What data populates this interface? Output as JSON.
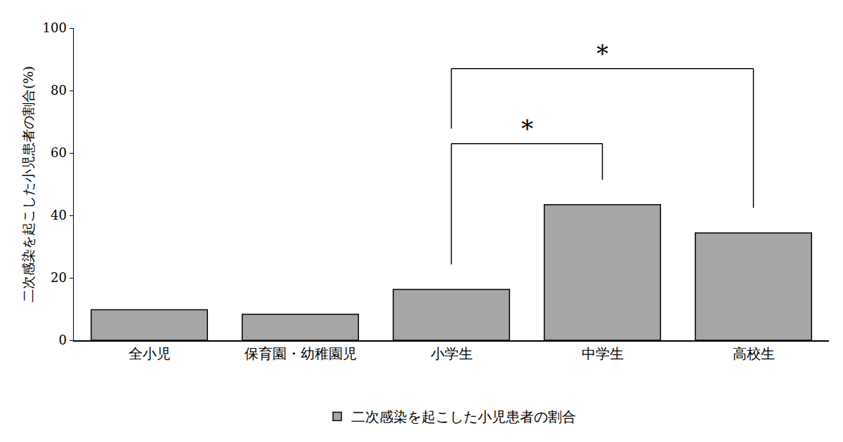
{
  "chart_data": {
    "type": "bar",
    "y_label": "二次感染を起こした小児患者の割合(%)",
    "categories": [
      "全小児",
      "保育園・幼稚園児",
      "小学生",
      "中学生",
      "高校生"
    ],
    "series": [
      {
        "name": "二次感染を起こした小児患者の割合",
        "color": "#a6a6a6",
        "values": [
          9.8,
          8.3,
          16.3,
          43.4,
          34.4
        ]
      }
    ],
    "ylim": [
      0,
      100
    ],
    "yticks": [
      0,
      20,
      40,
      60,
      80,
      100
    ],
    "grid": false,
    "legend": "bottom",
    "annotations": [
      {
        "text": "*",
        "from": "小学生",
        "to": "中学生",
        "y": 63
      },
      {
        "text": "*",
        "from": "小学生",
        "to": "高校生",
        "y": 87
      }
    ]
  }
}
